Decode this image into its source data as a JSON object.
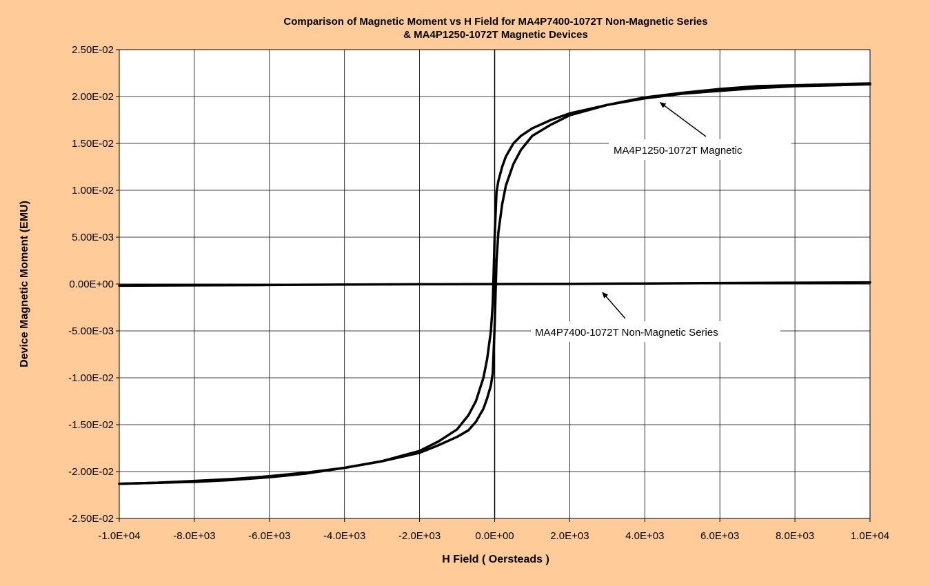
{
  "chart_data": {
    "type": "line",
    "title_line1": "Comparison of Magnetic Moment vs H Field for MA4P7400-1072T Non-Magnetic Series",
    "title_line2": "& MA4P1250-1072T Magnetic Devices",
    "xlabel": "H Field ( Oersteads )",
    "ylabel": "Device Magnetic Moment (EMU)",
    "xlim": [
      -10000,
      10000
    ],
    "ylim": [
      -0.025,
      0.025
    ],
    "x_ticks": [
      -10000,
      -8000,
      -6000,
      -4000,
      -2000,
      0,
      2000,
      4000,
      6000,
      8000,
      10000
    ],
    "x_tick_labels": [
      "-1.0E+04",
      "-8.0E+03",
      "-6.0E+03",
      "-4.0E+03",
      "-2.0E+03",
      "0.0E+00",
      "2.0E+03",
      "4.0E+03",
      "6.0E+03",
      "8.0E+03",
      "1.0E+04"
    ],
    "y_ticks": [
      0.025,
      0.02,
      0.015,
      0.01,
      0.005,
      0,
      -0.005,
      -0.01,
      -0.015,
      -0.02,
      -0.025
    ],
    "y_tick_labels": [
      "2.50E-02",
      "2.00E-02",
      "1.50E-02",
      "1.00E-02",
      "5.00E-03",
      "0.00E+00",
      "-5.00E-03",
      "-1.00E-02",
      "-1.50E-02",
      "-2.00E-02",
      "-2.50E-02"
    ],
    "grid": true,
    "legend": "none",
    "background_color": "#FFCC99",
    "plot_area_color": "#FFFFFF",
    "line_color": "#000000",
    "series": [
      {
        "name": "MA4P1250-1072T Magnetic",
        "branches": [
          {
            "x": [
              -10000,
              -9000,
              -8000,
              -7000,
              -6000,
              -5000,
              -4000,
              -3000,
              -2000,
              -1500,
              -1000,
              -700,
              -500,
              -300,
              -200,
              -100,
              -50,
              0,
              50,
              100,
              200,
              300,
              500,
              700,
              1000,
              1500,
              2000,
              3000,
              4000,
              5000,
              6000,
              7000,
              8000,
              9000,
              10000
            ],
            "y": [
              -0.0213,
              -0.0212,
              -0.0211,
              -0.0209,
              -0.0206,
              -0.0202,
              -0.0196,
              -0.0189,
              -0.0178,
              -0.0168,
              -0.0155,
              -0.014,
              -0.0125,
              -0.01,
              -0.008,
              -0.005,
              -0.002,
              0.005,
              0.0098,
              0.011,
              0.0125,
              0.0136,
              0.015,
              0.0158,
              0.0166,
              0.0175,
              0.0182,
              0.0191,
              0.0198,
              0.0203,
              0.0206,
              0.0209,
              0.0211,
              0.0212,
              0.0213
            ]
          },
          {
            "x": [
              10000,
              9000,
              8000,
              7000,
              6000,
              5000,
              4000,
              3000,
              2000,
              1500,
              1000,
              700,
              500,
              300,
              200,
              100,
              50,
              0,
              -50,
              -100,
              -200,
              -300,
              -500,
              -700,
              -1000,
              -1500,
              -2000,
              -3000,
              -4000,
              -5000,
              -6000,
              -7000,
              -8000,
              -9000,
              -10000
            ],
            "y": [
              0.0214,
              0.0213,
              0.0212,
              0.0211,
              0.0208,
              0.0204,
              0.0199,
              0.0191,
              0.018,
              0.017,
              0.0158,
              0.0143,
              0.0128,
              0.0105,
              0.0085,
              0.0055,
              0.0025,
              -0.0045,
              -0.0095,
              -0.0108,
              -0.0122,
              -0.0133,
              -0.0147,
              -0.0156,
              -0.0163,
              -0.0172,
              -0.018,
              -0.0189,
              -0.0196,
              -0.0201,
              -0.0205,
              -0.0208,
              -0.021,
              -0.0212,
              -0.0213
            ]
          }
        ]
      },
      {
        "name": "MA4P7400-1072T Non-Magnetic Series",
        "branches": [
          {
            "x": [
              -10000,
              -8000,
              -6000,
              -4000,
              -2000,
              0,
              2000,
              4000,
              6000,
              8000,
              10000
            ],
            "y": [
              -0.00018,
              -0.00014,
              -0.0001,
              -6e-05,
              -2e-05,
              0.0,
              2e-05,
              6e-05,
              0.0001,
              0.00014,
              0.00018
            ]
          }
        ]
      }
    ],
    "annotations": [
      {
        "text": "MA4P1250-1072T Magnetic",
        "arrow_to": [
          4300,
          0.0198
        ]
      },
      {
        "text": "MA4P7400-1072T Non-Magnetic Series",
        "arrow_to": [
          2800,
          -0.0003
        ]
      }
    ]
  }
}
